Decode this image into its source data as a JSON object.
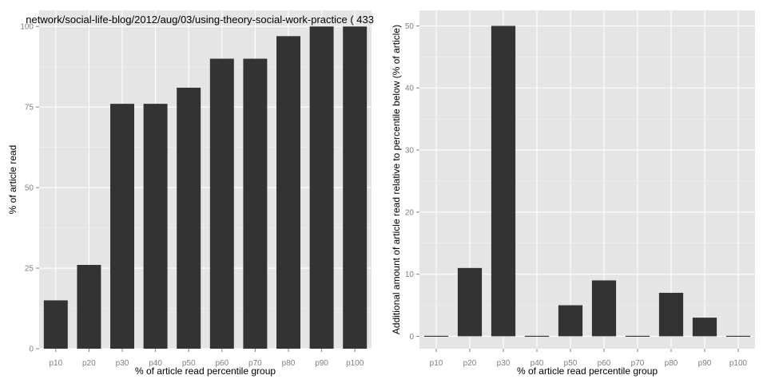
{
  "chart_data": [
    {
      "type": "bar",
      "title": "network/social-life-blog/2012/aug/03/using-theory-social-work-practice ( 433",
      "xlabel": "% of article read percentile group",
      "ylabel": "% of article read",
      "categories": [
        "p10",
        "p20",
        "p30",
        "p40",
        "p50",
        "p60",
        "p70",
        "p80",
        "p90",
        "p100"
      ],
      "values": [
        15,
        26,
        76,
        76,
        81,
        90,
        90,
        97,
        100,
        100
      ],
      "ylim": [
        0,
        105
      ],
      "yticks": [
        "0",
        "25",
        "50",
        "75",
        "100"
      ],
      "ytick_values": [
        0,
        25,
        50,
        75,
        100
      ],
      "grid": true,
      "legend": "none"
    },
    {
      "type": "bar",
      "title": "",
      "xlabel": "% of article read percentile group",
      "ylabel": "Additional amount of article read relative to percentile below (% of article)",
      "categories": [
        "p10",
        "p20",
        "p30",
        "p40",
        "p50",
        "p60",
        "p70",
        "p80",
        "p90",
        "p100"
      ],
      "values": [
        0,
        11,
        50,
        0,
        5,
        9,
        0,
        7,
        3,
        0
      ],
      "ylim": [
        -2,
        52.5
      ],
      "yticks": [
        "0",
        "10",
        "20",
        "30",
        "40",
        "50"
      ],
      "ytick_values": [
        0,
        10,
        20,
        30,
        40,
        50
      ],
      "grid": true,
      "legend": "none"
    }
  ]
}
